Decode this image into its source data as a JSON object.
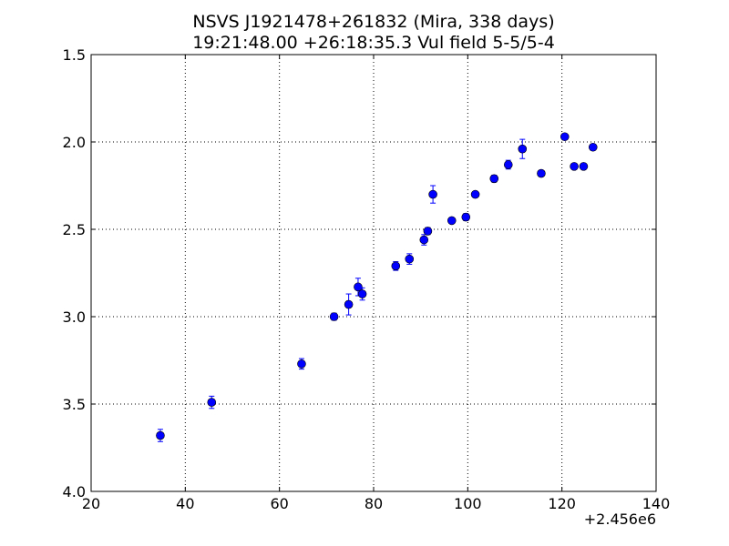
{
  "chart_data": {
    "type": "scatter",
    "title": "NSVS J1921478+261832 (Mira, 338 days)",
    "subtitle": "19:21:48.00 +26:18:35.3 Vul field 5-5/5-4",
    "xlabel": "",
    "ylabel": "",
    "x_offset_label": "+2.456e6",
    "xlim": [
      20,
      140
    ],
    "ylim": [
      1.5,
      4.0
    ],
    "y_inverted": true,
    "grid": true,
    "x_ticks": [
      "20",
      "40",
      "60",
      "80",
      "100",
      "120",
      "140"
    ],
    "y_ticks": [
      "1.5",
      "2.0",
      "2.5",
      "3.0",
      "3.5",
      "4.0"
    ],
    "marker_color": "#0000ff",
    "series": [
      {
        "x": [
          34.7,
          45.6,
          64.7,
          71.6,
          74.7,
          76.7,
          77.6,
          84.7,
          87.6,
          90.7,
          91.5,
          92.6,
          96.6,
          99.6,
          101.6,
          105.6,
          108.6,
          111.6,
          115.6,
          120.6,
          122.6,
          124.6,
          126.6
        ],
        "y": [
          3.68,
          3.49,
          3.27,
          3.0,
          2.93,
          2.83,
          2.87,
          2.71,
          2.67,
          2.56,
          2.51,
          2.3,
          2.45,
          2.43,
          2.3,
          2.21,
          2.13,
          2.04,
          2.18,
          1.97,
          2.14,
          2.14,
          2.03
        ],
        "yerr": [
          0.035,
          0.035,
          0.03,
          0.02,
          0.06,
          0.05,
          0.035,
          0.025,
          0.03,
          0.03,
          0.02,
          0.05,
          0.015,
          0.02,
          0.015,
          0.02,
          0.025,
          0.055,
          0.015,
          0.015,
          0.015,
          0.015,
          0.015
        ]
      }
    ]
  }
}
